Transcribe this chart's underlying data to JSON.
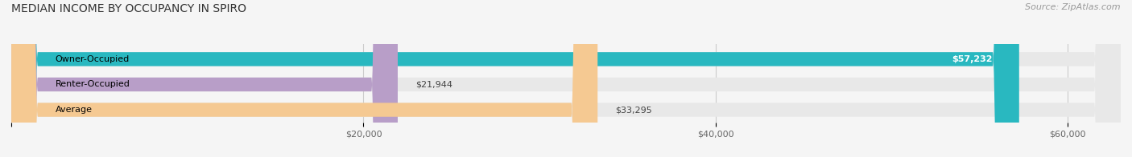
{
  "title": "MEDIAN INCOME BY OCCUPANCY IN SPIRO",
  "source": "Source: ZipAtlas.com",
  "categories": [
    "Owner-Occupied",
    "Renter-Occupied",
    "Average"
  ],
  "values": [
    57232,
    21944,
    33295
  ],
  "labels": [
    "$57,232",
    "$21,944",
    "$33,295"
  ],
  "bar_colors": [
    "#29b8c0",
    "#b89ec8",
    "#f5c992"
  ],
  "bar_bg_color": "#e8e8e8",
  "xlim": [
    0,
    63000
  ],
  "xticks": [
    0,
    20000,
    40000,
    60000
  ],
  "xticklabels": [
    "",
    "$20,000",
    "$40,000",
    "$60,000"
  ],
  "title_fontsize": 10,
  "source_fontsize": 8,
  "label_fontsize": 8,
  "bar_height": 0.55,
  "background_color": "#f5f5f5"
}
